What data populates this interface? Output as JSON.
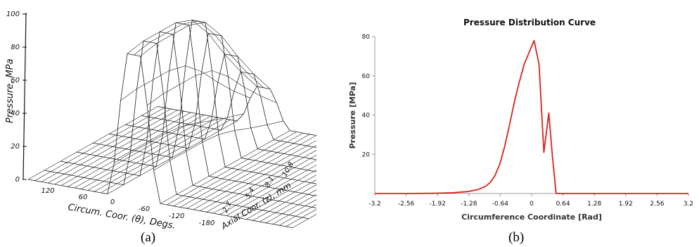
{
  "panel_a": {
    "caption": "(a)",
    "z_axis_label": "Pressure, MPa",
    "theta_axis_label": "Circum. Coor. (θ), Degs.",
    "axial_axis_label": "Axial Coor. (z), mm",
    "z_ticks": [
      "0",
      "20",
      "40",
      "60",
      "80",
      "100"
    ],
    "theta_ticks": [
      "120",
      "60",
      "0",
      "-60",
      "-120",
      "-180"
    ],
    "axial_ticks": [
      "2.7",
      "5.4",
      "8.1",
      "10.8"
    ]
  },
  "panel_b": {
    "caption": "(b)",
    "line_color": "#d9231c"
  },
  "chart_data": [
    {
      "type": "surface",
      "panel": "a",
      "zlabel": "Pressure, MPa",
      "xlabel": "Circum. Coor. (θ), Degs.",
      "ylabel": "Axial Coor. (z), mm",
      "zlim": [
        0,
        100
      ],
      "theta_ticks": [
        120,
        60,
        0,
        -60,
        -120,
        -180
      ],
      "axial_ticks": [
        2.7,
        5.4,
        8.1,
        10.8
      ]
    },
    {
      "type": "line",
      "panel": "b",
      "title": "Pressure Distribution Curve",
      "xlabel": "Circumference Coordinate [Rad]",
      "ylabel": "Pressure [MPa]",
      "xlim": [
        -3.2,
        3.2
      ],
      "ylim": [
        0,
        80
      ],
      "xticks": [
        "-3.2",
        "-2.56",
        "-1.92",
        "-1.28",
        "-0.64",
        "0",
        "0.64",
        "1.28",
        "1.92",
        "2.56",
        "3.2"
      ],
      "yticks": [
        "20",
        "40",
        "60",
        "80"
      ],
      "grid": false,
      "x": [
        -3.2,
        -2.5,
        -2.0,
        -1.6,
        -1.3,
        -1.1,
        -0.95,
        -0.85,
        -0.75,
        -0.65,
        -0.55,
        -0.45,
        -0.35,
        -0.25,
        -0.15,
        -0.05,
        0.05,
        0.15,
        0.25,
        0.35,
        0.42,
        0.5,
        0.8,
        1.5,
        3.2
      ],
      "series": [
        {
          "values": [
            0,
            0,
            0.1,
            0.4,
            1.0,
            2.0,
            3.5,
            5.5,
            9,
            15,
            24,
            35,
            47,
            57,
            66,
            72,
            78,
            66,
            21,
            41,
            20,
            0,
            0,
            0,
            0
          ]
        }
      ]
    }
  ]
}
